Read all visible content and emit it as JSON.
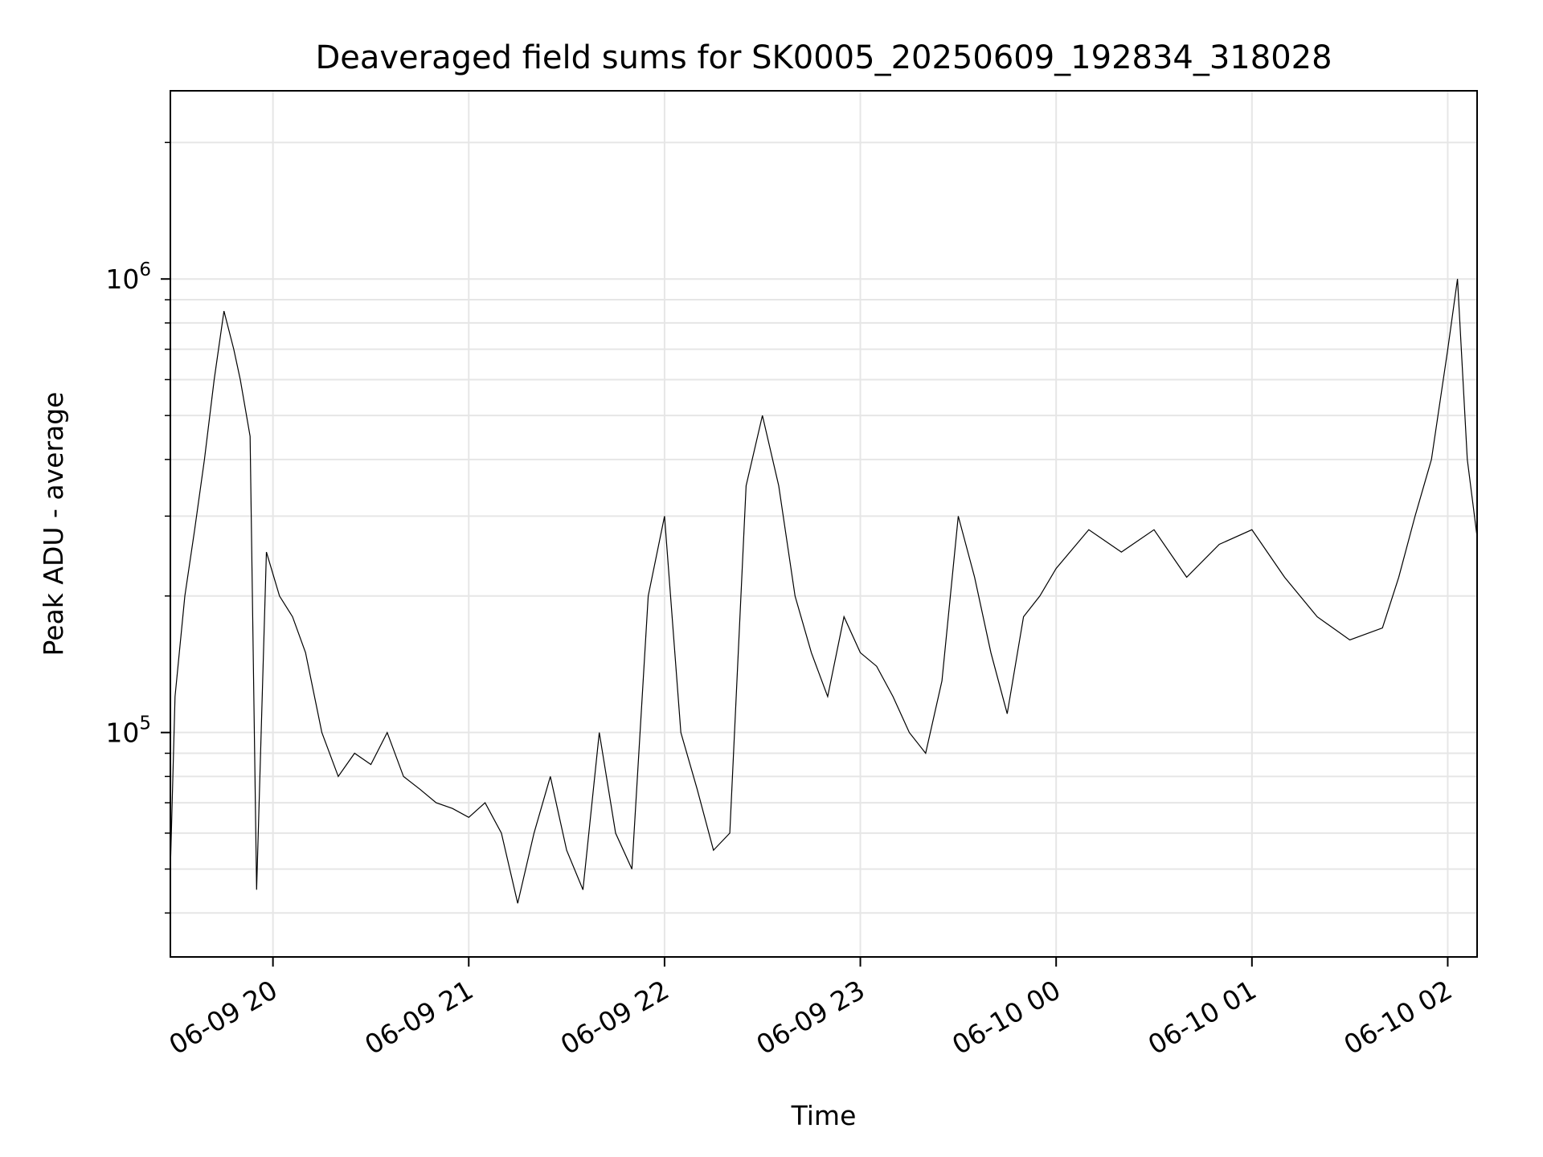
{
  "chart_data": {
    "type": "line",
    "title": "Deaveraged field sums for SK0005_20250609_192834_318028",
    "xlabel": "Time",
    "ylabel": "Peak ADU - average",
    "y_scale": "log",
    "grid": true,
    "line_color": "#000000",
    "grid_color": "#e6e6e6",
    "xlim": [
      "2025-06-09 19:28:34",
      "2025-06-10 02:09:00"
    ],
    "ylim": [
      32000,
      2600000
    ],
    "x_ticks": [
      {
        "time": "2025-06-09 20:00",
        "label": "06-09 20"
      },
      {
        "time": "2025-06-09 21:00",
        "label": "06-09 21"
      },
      {
        "time": "2025-06-09 22:00",
        "label": "06-09 22"
      },
      {
        "time": "2025-06-09 23:00",
        "label": "06-09 23"
      },
      {
        "time": "2025-06-10 00:00",
        "label": "06-10 00"
      },
      {
        "time": "2025-06-10 01:00",
        "label": "06-10 01"
      },
      {
        "time": "2025-06-10 02:00",
        "label": "06-10 02"
      }
    ],
    "y_ticks": [
      {
        "value": 100000,
        "base": "10",
        "exp": "5"
      },
      {
        "value": 1000000,
        "base": "10",
        "exp": "6"
      }
    ],
    "series": [
      {
        "x": [
          "2025-06-09 19:28:34",
          "2025-06-09 19:30",
          "2025-06-09 19:33",
          "2025-06-09 19:36",
          "2025-06-09 19:39",
          "2025-06-09 19:42",
          "2025-06-09 19:45",
          "2025-06-09 19:48",
          "2025-06-09 19:50",
          "2025-06-09 19:53",
          "2025-06-09 19:55",
          "2025-06-09 19:58",
          "2025-06-09 20:02",
          "2025-06-09 20:06",
          "2025-06-09 20:10",
          "2025-06-09 20:15",
          "2025-06-09 20:20",
          "2025-06-09 20:25",
          "2025-06-09 20:30",
          "2025-06-09 20:35",
          "2025-06-09 20:40",
          "2025-06-09 20:45",
          "2025-06-09 20:50",
          "2025-06-09 20:55",
          "2025-06-09 21:00",
          "2025-06-09 21:05",
          "2025-06-09 21:10",
          "2025-06-09 21:15",
          "2025-06-09 21:20",
          "2025-06-09 21:25",
          "2025-06-09 21:30",
          "2025-06-09 21:35",
          "2025-06-09 21:40",
          "2025-06-09 21:45",
          "2025-06-09 21:50",
          "2025-06-09 21:55",
          "2025-06-09 22:00",
          "2025-06-09 22:05",
          "2025-06-09 22:10",
          "2025-06-09 22:15",
          "2025-06-09 22:20",
          "2025-06-09 22:25",
          "2025-06-09 22:30",
          "2025-06-09 22:35",
          "2025-06-09 22:40",
          "2025-06-09 22:45",
          "2025-06-09 22:50",
          "2025-06-09 22:55",
          "2025-06-09 23:00",
          "2025-06-09 23:05",
          "2025-06-09 23:10",
          "2025-06-09 23:15",
          "2025-06-09 23:20",
          "2025-06-09 23:25",
          "2025-06-09 23:30",
          "2025-06-09 23:35",
          "2025-06-09 23:40",
          "2025-06-09 23:45",
          "2025-06-09 23:50",
          "2025-06-09 23:55",
          "2025-06-10 00:00",
          "2025-06-10 00:10",
          "2025-06-10 00:20",
          "2025-06-10 00:30",
          "2025-06-10 00:40",
          "2025-06-10 00:50",
          "2025-06-10 01:00",
          "2025-06-10 01:10",
          "2025-06-10 01:20",
          "2025-06-10 01:30",
          "2025-06-10 01:40",
          "2025-06-10 01:45",
          "2025-06-10 01:50",
          "2025-06-10 01:55",
          "2025-06-10 02:00",
          "2025-06-10 02:03",
          "2025-06-10 02:06",
          "2025-06-10 02:09"
        ],
        "values": [
          50000,
          120000,
          200000,
          280000,
          400000,
          600000,
          850000,
          700000,
          600000,
          450000,
          45000,
          250000,
          200000,
          180000,
          150000,
          100000,
          80000,
          90000,
          85000,
          100000,
          80000,
          75000,
          70000,
          68000,
          65000,
          70000,
          60000,
          42000,
          60000,
          80000,
          55000,
          45000,
          100000,
          60000,
          50000,
          200000,
          300000,
          100000,
          75000,
          55000,
          60000,
          350000,
          500000,
          350000,
          200000,
          150000,
          120000,
          180000,
          150000,
          140000,
          120000,
          100000,
          90000,
          130000,
          300000,
          220000,
          150000,
          110000,
          180000,
          200000,
          230000,
          280000,
          250000,
          280000,
          220000,
          260000,
          280000,
          220000,
          180000,
          160000,
          170000,
          220000,
          300000,
          400000,
          700000,
          1000000,
          400000,
          270000
        ]
      }
    ]
  }
}
